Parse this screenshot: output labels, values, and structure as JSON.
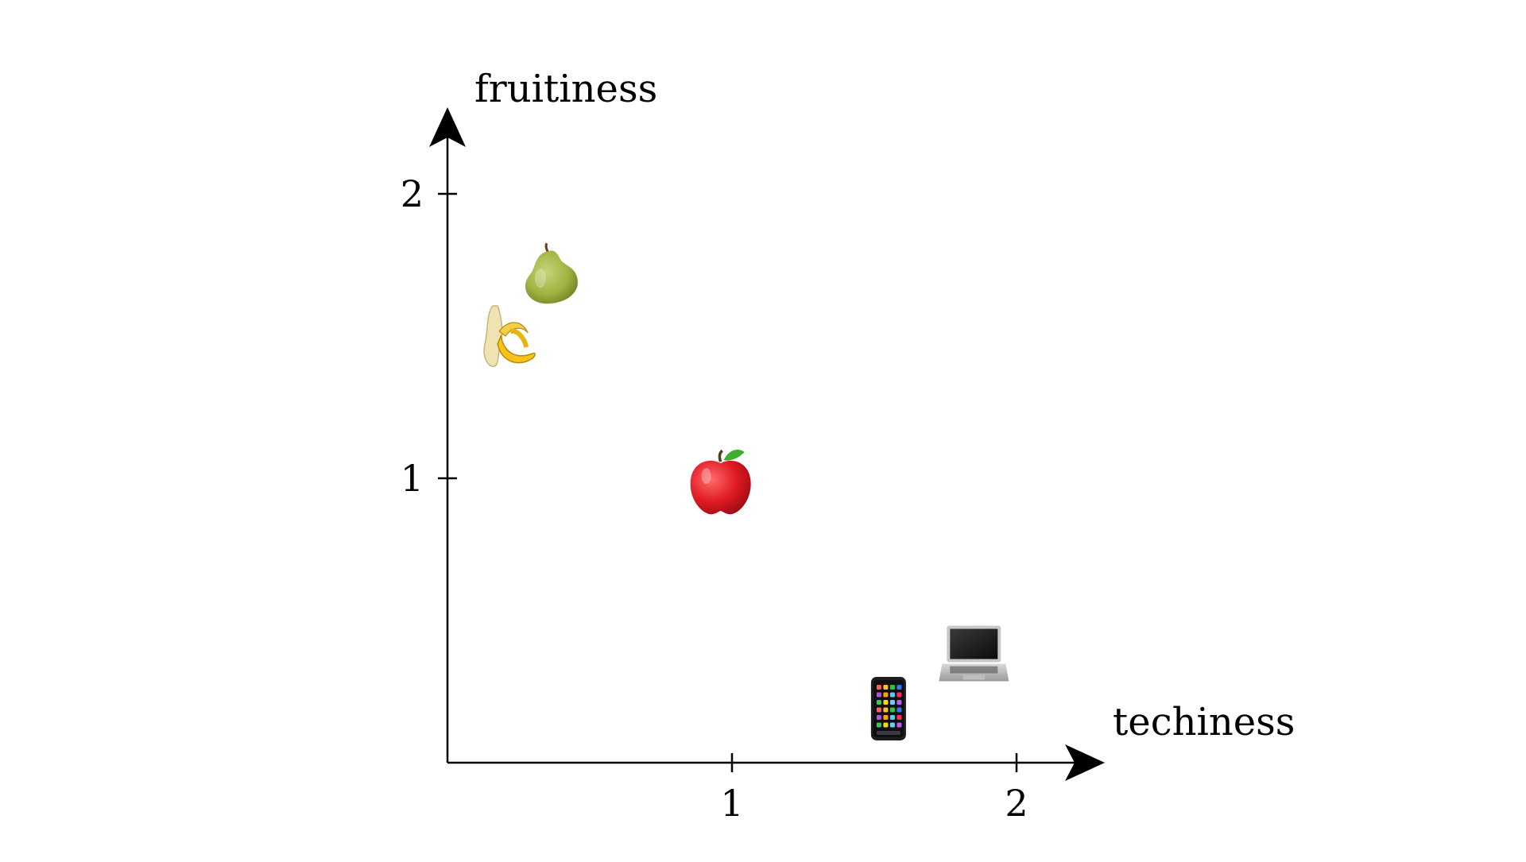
{
  "chart_data": {
    "type": "scatter",
    "xlabel": "techiness",
    "ylabel": "fruitiness",
    "xlim": [
      0,
      2.25
    ],
    "ylim": [
      0,
      2.25
    ],
    "x_ticks": [
      {
        "value": 1,
        "label": "1"
      },
      {
        "value": 2,
        "label": "2"
      }
    ],
    "y_ticks": [
      {
        "value": 1,
        "label": "1"
      },
      {
        "value": 2,
        "label": "2"
      }
    ],
    "grid": false,
    "points": [
      {
        "icon": "pear-icon",
        "x": 0.36,
        "y": 1.72
      },
      {
        "icon": "banana-icon",
        "x": 0.21,
        "y": 1.5
      },
      {
        "icon": "apple-icon",
        "x": 0.96,
        "y": 0.98
      },
      {
        "icon": "laptop-icon",
        "x": 1.85,
        "y": 0.37
      },
      {
        "icon": "phone-icon",
        "x": 1.55,
        "y": 0.19
      }
    ]
  }
}
